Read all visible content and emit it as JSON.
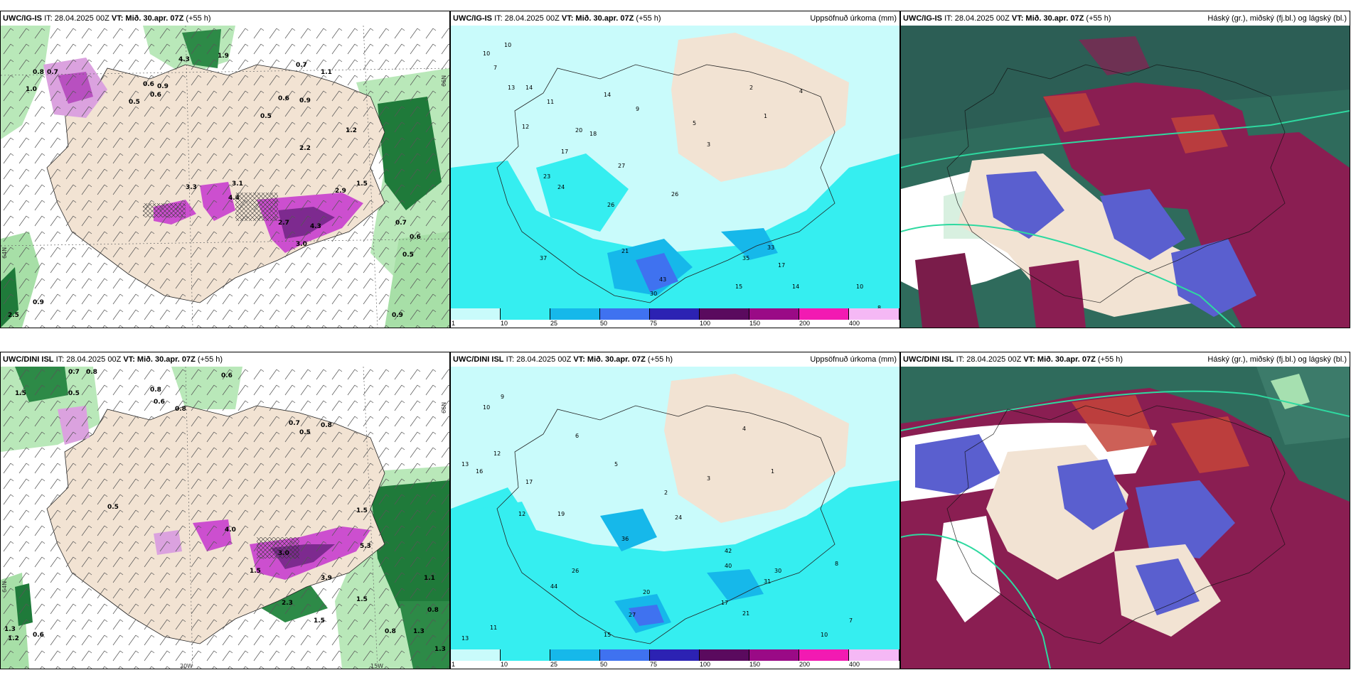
{
  "panels": [
    {
      "model": "UWC/IG-IS",
      "it": "IT: 28.04.2025 00Z",
      "vt_label": "VT:",
      "vt": "Mið. 30.apr. 07Z",
      "lead": "(+55 h)",
      "right": ""
    },
    {
      "model": "UWC/IG-IS",
      "it": "IT: 28.04.2025 00Z",
      "vt_label": "VT:",
      "vt": "Mið. 30.apr. 07Z",
      "lead": "(+55 h)",
      "right": "Uppsöfnuð úrkoma (mm)"
    },
    {
      "model": "UWC/IG-IS",
      "it": "IT: 28.04.2025 00Z",
      "vt_label": "VT:",
      "vt": "Mið. 30.apr. 07Z",
      "lead": "(+55 h)",
      "right": "Háský (gr.), miðský (fj.bl.) og lágský (bl.)"
    },
    {
      "model": "UWC/DINI ISL",
      "it": "IT: 28.04.2025 00Z",
      "vt_label": "VT:",
      "vt": "Mið. 30.apr. 07Z",
      "lead": "(+55 h)",
      "right": ""
    },
    {
      "model": "UWC/DINI ISL",
      "it": "IT: 28.04.2025 00Z",
      "vt_label": "VT:",
      "vt": "Mið. 30.apr. 07Z",
      "lead": "(+55 h)",
      "right": "Uppsöfnuð úrkoma (mm)"
    },
    {
      "model": "UWC/DINI ISL",
      "it": "IT: 28.04.2025 00Z",
      "vt_label": "VT:",
      "vt": "Mið. 30.apr. 07Z",
      "lead": "(+55 h)",
      "right": "Háský (gr.), miðský (fj.bl.) og lágský (bl.)"
    }
  ],
  "lon_labels": {
    "w20": "20W",
    "w15": "15W",
    "n66": "66N",
    "n64": "64N"
  },
  "colorbar": {
    "ticks": [
      "1",
      "10",
      "25",
      "50",
      "75",
      "100",
      "150",
      "200",
      "400"
    ],
    "colors": [
      "#c9fbfb",
      "#35eef0",
      "#16b8ea",
      "#3f72f0",
      "#2c22b3",
      "#5a0a5e",
      "#9a0a86",
      "#f21ab2",
      "#f5b8f5"
    ]
  },
  "precip_labels_top": [
    "0.8",
    "0.7",
    "1.0",
    "0.6",
    "0.9",
    "0.5",
    "0.6",
    "4.3",
    "1.9",
    "0.7",
    "1.1",
    "0.6",
    "0.9",
    "0.5",
    "2.2",
    "4.4",
    "3.1",
    "2.7",
    "4.3",
    "3.0",
    "1.2",
    "0.7",
    "0.6",
    "0.5",
    "0.9",
    "2.9",
    "3.3",
    "1.5",
    "2.5",
    "0.9"
  ],
  "precip_labels_bottom": [
    "0.7",
    "0.8",
    "0.6",
    "1.5",
    "0.5",
    "0.8",
    "0.6",
    "0.8",
    "0.7",
    "0.5",
    "0.8",
    "1.5",
    "4.0",
    "3.0",
    "5.3",
    "3.9",
    "1.5",
    "2.3",
    "1.5",
    "0.8",
    "1.3",
    "1.1",
    "0.8",
    "0.6",
    "1.2",
    "1.3",
    "0.5",
    "1.5",
    "1.3"
  ],
  "accum_labels_top": [
    "10",
    "7",
    "10",
    "13",
    "14",
    "11",
    "12",
    "17",
    "23",
    "24",
    "20",
    "26",
    "37",
    "43",
    "30",
    "14",
    "18",
    "21",
    "17",
    "14",
    "15",
    "27",
    "9",
    "5",
    "3",
    "2",
    "1",
    "4",
    "26",
    "33",
    "35",
    "10",
    "8"
  ],
  "accum_labels_bottom": [
    "10",
    "9",
    "13",
    "12",
    "16",
    "12",
    "17",
    "19",
    "44",
    "26",
    "36",
    "42",
    "40",
    "24",
    "31",
    "30",
    "20",
    "21",
    "13",
    "11",
    "17",
    "8",
    "6",
    "5",
    "4",
    "3",
    "2",
    "1",
    "27",
    "15",
    "10",
    "7"
  ]
}
